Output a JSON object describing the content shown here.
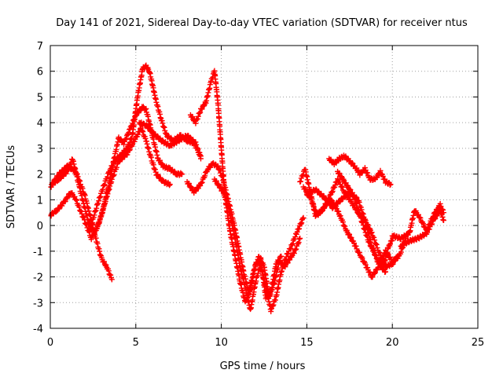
{
  "chart_data": {
    "type": "scatter",
    "title": "Day 141 of 2021, Sidereal Day-to-day VTEC variation (SDTVAR) for receiver ntus",
    "xlabel": "GPS time / hours",
    "ylabel": "SDTVAR / TECUs",
    "xlim": [
      0,
      25
    ],
    "ylim": [
      -4,
      7
    ],
    "xticks": [
      "0",
      "5",
      "10",
      "15",
      "20",
      "25"
    ],
    "yticks": [
      "-4",
      "-3",
      "-2",
      "-1",
      "0",
      "1",
      "2",
      "3",
      "4",
      "5",
      "6",
      "7"
    ],
    "grid": true,
    "marker": "+",
    "marker_color": "#ff0000",
    "series": [
      {
        "name": "trace-1",
        "x": [
          0.0,
          0.5,
          1.0,
          1.5,
          2.0,
          2.4,
          2.7,
          3.0,
          3.3,
          3.6
        ],
        "y": [
          1.5,
          2.0,
          2.3,
          2.1,
          1.2,
          0.2,
          -0.6,
          -1.3,
          -1.6,
          -2.1
        ]
      },
      {
        "name": "trace-2",
        "x": [
          0.0,
          0.4,
          0.8,
          1.2,
          1.5,
          2.0,
          2.4,
          2.8,
          3.2,
          3.6,
          4.0,
          4.5,
          5.0,
          5.3,
          5.6,
          5.9,
          6.2,
          6.6,
          7.0
        ],
        "y": [
          0.4,
          0.6,
          0.9,
          1.3,
          1.0,
          0.2,
          -0.5,
          0.0,
          0.9,
          1.8,
          2.5,
          2.8,
          3.4,
          3.8,
          3.3,
          2.6,
          2.0,
          1.7,
          1.6
        ]
      },
      {
        "name": "trace-3",
        "x": [
          0.1,
          0.5,
          1.0,
          1.3,
          1.7,
          2.2,
          2.6,
          3.0,
          3.4,
          3.7,
          4.0,
          4.3,
          4.7,
          5.0,
          5.4,
          5.6,
          5.8,
          6.0,
          6.3,
          6.6,
          7.0,
          7.4,
          7.7
        ],
        "y": [
          1.6,
          1.8,
          2.1,
          2.6,
          1.5,
          0.2,
          -0.3,
          0.4,
          1.5,
          2.5,
          3.4,
          3.2,
          3.8,
          4.3,
          4.6,
          4.5,
          4.0,
          3.4,
          2.6,
          2.3,
          2.2,
          2.0,
          2.0
        ]
      },
      {
        "name": "trace-4",
        "x": [
          2.3,
          2.7,
          3.1,
          3.5,
          3.9,
          4.2,
          4.5,
          4.8,
          5.1,
          5.4,
          5.6,
          5.8,
          6.0,
          6.2,
          6.5,
          6.8,
          7.2,
          7.6,
          8.0,
          8.4,
          8.8
        ],
        "y": [
          -0.2,
          0.7,
          1.5,
          2.2,
          2.6,
          2.8,
          3.0,
          3.5,
          5.0,
          6.1,
          6.2,
          6.0,
          5.4,
          4.8,
          4.1,
          3.5,
          3.3,
          3.5,
          3.3,
          3.2,
          2.7
        ]
      },
      {
        "name": "trace-5",
        "x": [
          5.2,
          5.6,
          6.0,
          6.5,
          7.0,
          7.5,
          8.0,
          8.5,
          8.8
        ],
        "y": [
          4.0,
          3.9,
          3.6,
          3.3,
          3.1,
          3.3,
          3.5,
          3.2,
          2.6
        ]
      },
      {
        "name": "trace-6",
        "x": [
          8.2,
          8.5,
          8.8,
          9.1,
          9.4,
          9.6,
          9.8,
          10.0,
          10.2,
          10.5,
          10.8,
          11.1,
          11.4,
          11.7,
          12.0,
          12.3,
          12.6,
          12.9,
          13.2,
          13.5
        ],
        "y": [
          4.3,
          4.0,
          4.5,
          4.8,
          5.6,
          6.0,
          4.8,
          3.0,
          1.2,
          -0.2,
          -1.2,
          -2.2,
          -3.0,
          -2.5,
          -1.5,
          -1.3,
          -2.8,
          -2.6,
          -1.5,
          -1.2
        ]
      },
      {
        "name": "trace-7",
        "x": [
          8.0,
          8.4,
          8.8,
          9.2,
          9.5,
          9.8,
          10.1,
          10.4,
          10.7,
          11.0,
          11.3,
          11.6,
          11.9,
          12.2,
          12.5,
          12.8,
          13.1,
          13.4,
          13.7,
          14.0,
          14.3,
          14.6
        ],
        "y": [
          1.7,
          1.3,
          1.6,
          2.2,
          2.4,
          2.3,
          1.8,
          1.0,
          0.2,
          -0.8,
          -1.8,
          -2.6,
          -1.8,
          -1.2,
          -1.6,
          -2.8,
          -2.2,
          -1.4,
          -1.6,
          -1.3,
          -1.0,
          -0.5
        ]
      },
      {
        "name": "trace-8",
        "x": [
          9.6,
          9.9,
          10.2,
          10.5,
          10.8,
          11.1,
          11.4,
          11.7,
          12.0,
          12.3,
          12.6,
          12.9,
          13.2,
          13.5,
          13.8,
          14.1,
          14.4,
          14.8
        ],
        "y": [
          1.8,
          1.5,
          1.2,
          0.5,
          -0.5,
          -1.6,
          -2.4,
          -3.3,
          -2.2,
          -1.5,
          -2.4,
          -3.3,
          -2.8,
          -1.8,
          -1.2,
          -0.8,
          -0.3,
          0.3
        ]
      },
      {
        "name": "trace-9",
        "x": [
          14.6,
          14.9,
          15.2,
          15.5,
          15.8,
          16.1,
          16.4,
          16.7,
          17.0,
          17.3,
          17.6,
          18.0,
          18.4,
          18.8,
          19.2,
          19.6,
          20.0,
          20.4,
          20.8
        ],
        "y": [
          1.7,
          2.2,
          1.3,
          0.4,
          0.5,
          0.8,
          1.0,
          0.7,
          0.3,
          -0.2,
          -0.5,
          -1.0,
          -1.5,
          -2.0,
          -1.6,
          -1.0,
          -1.4,
          -1.2,
          -0.5
        ]
      },
      {
        "name": "trace-10",
        "x": [
          14.8,
          15.2,
          15.6,
          16.0,
          16.4,
          16.8,
          17.2,
          17.6,
          18.0,
          18.4,
          18.8,
          19.2,
          19.6,
          20.0,
          20.3
        ],
        "y": [
          1.5,
          1.1,
          0.4,
          0.7,
          1.2,
          1.8,
          1.3,
          0.9,
          0.5,
          0.2,
          -0.3,
          -1.0,
          -1.6,
          -1.5,
          -1.2
        ]
      },
      {
        "name": "trace-11",
        "x": [
          15.0,
          15.5,
          16.0,
          16.5,
          17.0,
          17.5,
          18.0,
          18.4,
          18.8,
          19.2,
          19.6
        ],
        "y": [
          1.2,
          1.4,
          1.1,
          0.7,
          1.0,
          1.3,
          1.0,
          0.2,
          -0.8,
          -1.5,
          -1.8
        ]
      },
      {
        "name": "trace-12",
        "x": [
          16.3,
          16.6,
          16.9,
          17.2,
          17.5,
          17.8,
          18.1,
          18.4,
          18.7,
          19.0,
          19.3,
          19.6,
          19.9
        ],
        "y": [
          2.6,
          2.4,
          2.6,
          2.7,
          2.5,
          2.3,
          2.0,
          2.2,
          1.8,
          1.8,
          2.1,
          1.7,
          1.6
        ]
      },
      {
        "name": "trace-13",
        "x": [
          16.8,
          17.1,
          17.4,
          17.7,
          18.0,
          18.3,
          18.6,
          18.9,
          19.2,
          19.5,
          19.8,
          20.1
        ],
        "y": [
          2.1,
          1.8,
          1.5,
          1.2,
          0.6,
          0.0,
          -0.6,
          -1.0,
          -1.4,
          -1.5,
          -0.8,
          -0.4
        ]
      },
      {
        "name": "trace-14",
        "x": [
          20.0,
          20.5,
          21.0,
          21.3,
          21.6,
          22.0,
          22.4,
          22.8,
          23.0
        ],
        "y": [
          -0.4,
          -0.5,
          -0.3,
          0.6,
          0.3,
          -0.2,
          0.4,
          0.8,
          0.5
        ]
      },
      {
        "name": "trace-15",
        "x": [
          20.5,
          21.0,
          21.5,
          22.0,
          22.4,
          22.8,
          23.0
        ],
        "y": [
          -0.8,
          -0.6,
          -0.5,
          -0.3,
          0.2,
          0.6,
          0.2
        ]
      }
    ]
  }
}
